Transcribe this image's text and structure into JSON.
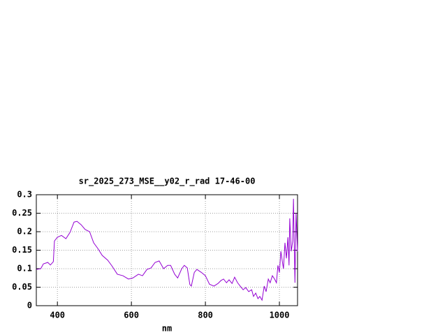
{
  "chart_data": {
    "type": "line",
    "title": "sr_2025_273_MSE__y02_r_rad 17-46-00",
    "x_label": "nm",
    "x": [
      343,
      355,
      362,
      374,
      381,
      389,
      392,
      400,
      411,
      423,
      434,
      445,
      453,
      464,
      475,
      487,
      498,
      509,
      521,
      536,
      547,
      562,
      577,
      592,
      604,
      619,
      630,
      642,
      653,
      664,
      675,
      687,
      698,
      706,
      717,
      725,
      736,
      743,
      751,
      758,
      762,
      770,
      777,
      789,
      800,
      811,
      823,
      834,
      842,
      849,
      857,
      864,
      872,
      879,
      887,
      894,
      902,
      909,
      917,
      925,
      930,
      936,
      942,
      947,
      953,
      959,
      964,
      970,
      975,
      981,
      987,
      992,
      996,
      1000,
      1004,
      1008,
      1011,
      1015,
      1019,
      1023,
      1026,
      1028,
      1032,
      1036,
      1038,
      1042,
      1045,
      1049
    ],
    "series": [
      {
        "color": "#9400d3",
        "values": [
          0.098,
          0.1,
          0.113,
          0.117,
          0.11,
          0.119,
          0.175,
          0.185,
          0.19,
          0.181,
          0.198,
          0.226,
          0.228,
          0.219,
          0.206,
          0.2,
          0.17,
          0.155,
          0.136,
          0.123,
          0.108,
          0.085,
          0.081,
          0.072,
          0.075,
          0.085,
          0.081,
          0.098,
          0.102,
          0.117,
          0.121,
          0.1,
          0.109,
          0.109,
          0.085,
          0.075,
          0.1,
          0.109,
          0.102,
          0.057,
          0.053,
          0.09,
          0.098,
          0.09,
          0.081,
          0.058,
          0.053,
          0.06,
          0.068,
          0.072,
          0.062,
          0.07,
          0.06,
          0.077,
          0.062,
          0.053,
          0.043,
          0.049,
          0.038,
          0.043,
          0.025,
          0.034,
          0.019,
          0.025,
          0.015,
          0.053,
          0.038,
          0.072,
          0.062,
          0.081,
          0.072,
          0.062,
          0.109,
          0.09,
          0.147,
          0.119,
          0.1,
          0.17,
          0.128,
          0.185,
          0.109,
          0.236,
          0.147,
          0.175,
          0.289,
          0.062,
          0.251,
          0.147
        ]
      }
    ],
    "xlim": [
      343,
      1049
    ],
    "xticks": [
      400,
      600,
      800,
      1000
    ],
    "ylim": [
      0,
      0.3
    ],
    "yticks": [
      0,
      0.05,
      0.1,
      0.15,
      0.2,
      0.25,
      0.3
    ],
    "grid": true
  }
}
